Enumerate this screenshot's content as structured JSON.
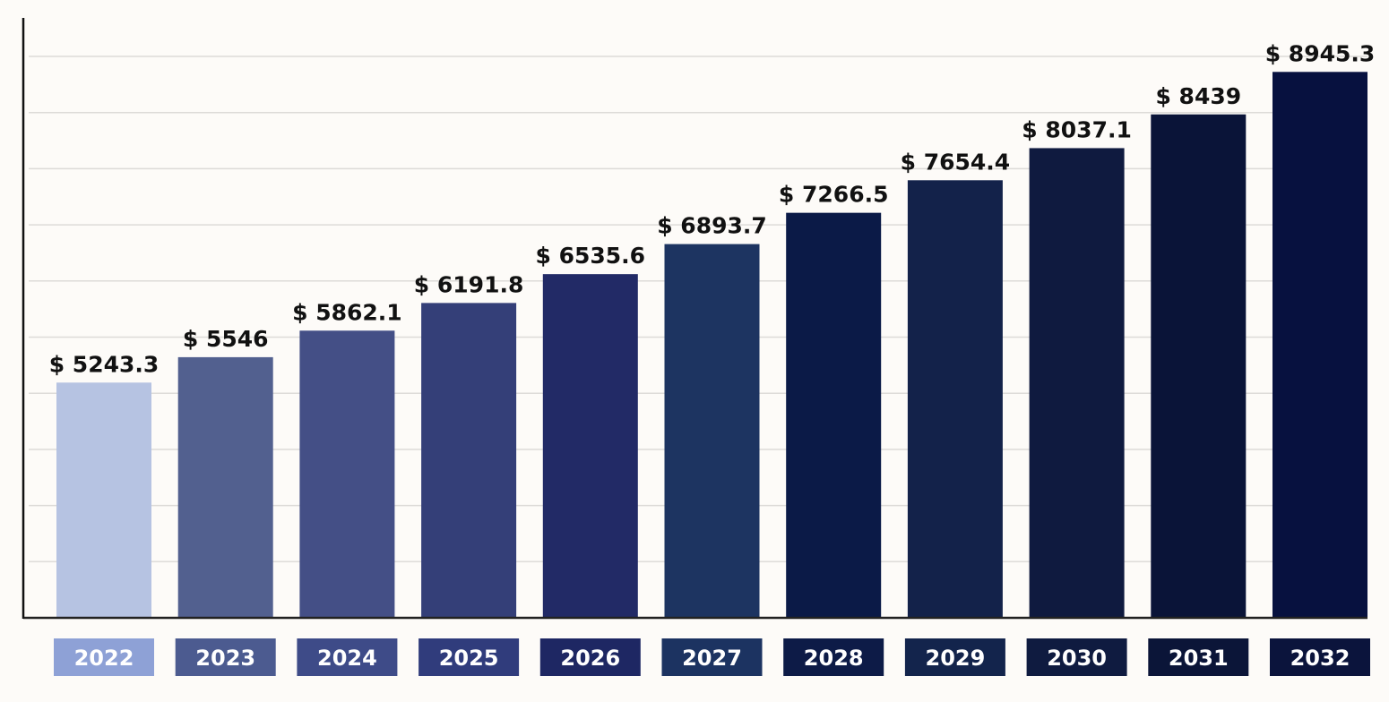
{
  "chart_data": {
    "type": "bar",
    "title": "",
    "xlabel": "",
    "ylabel": "",
    "categories": [
      "2022",
      "2023",
      "2024",
      "2025",
      "2026",
      "2027",
      "2028",
      "2029",
      "2030",
      "2031",
      "2032"
    ],
    "values": [
      5243.3,
      5546,
      5862.1,
      6191.8,
      6535.6,
      6893.7,
      7266.5,
      7654.4,
      8037.1,
      8439,
      8945.3
    ],
    "value_labels": [
      "$ 5243.3",
      "$ 5546",
      "$ 5862.1",
      "$ 6191.8",
      "$ 6535.6",
      "$ 6893.7",
      "$ 7266.5",
      "$ 7654.4",
      "$ 8037.1",
      "$ 8439",
      "$ 8945.3"
    ],
    "ylim": [
      2440,
      9130
    ],
    "gridlines": 10,
    "grid": true,
    "legend": "none",
    "bar_colors": [
      "#b6c3e2",
      "#52608f",
      "#444f86",
      "#343f78",
      "#222a66",
      "#1d3461",
      "#0b1a47",
      "#13224a",
      "#0f1a3f",
      "#0a1438",
      "#07113f"
    ],
    "label_colors": [
      "#8ea1d6",
      "#4c5b90",
      "#3e4b88",
      "#303c7c",
      "#1e2763",
      "#1c3361",
      "#0d1b47",
      "#13244c",
      "#0f1b40",
      "#0b1538",
      "#0b143c"
    ]
  }
}
